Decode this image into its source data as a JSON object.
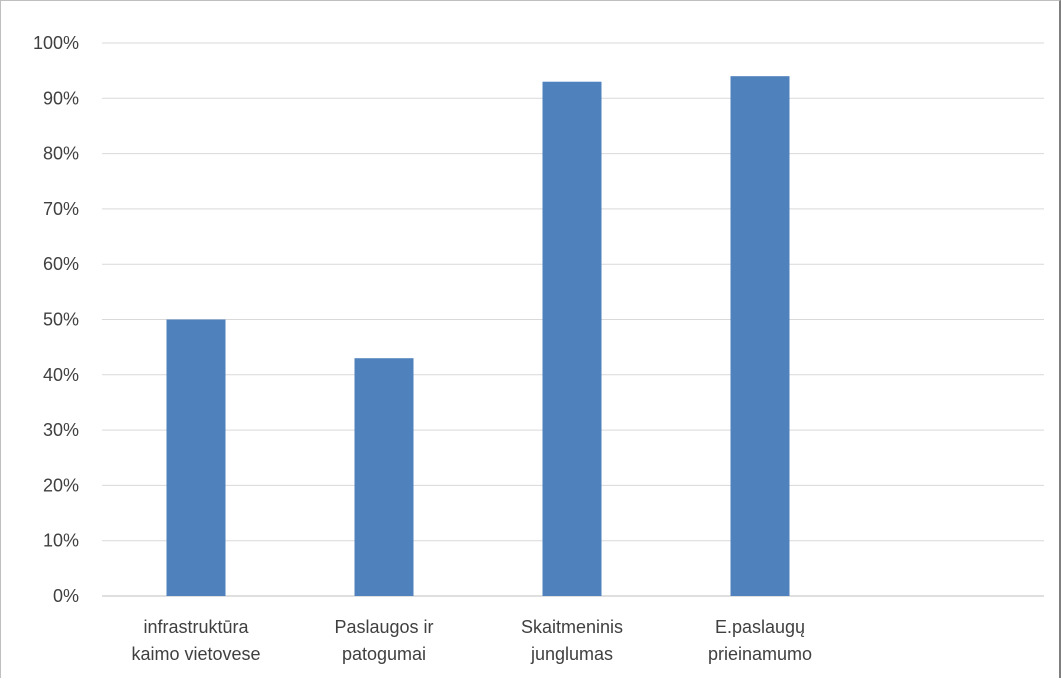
{
  "chart_data": {
    "type": "bar",
    "title": "",
    "xlabel": "",
    "ylabel": "",
    "categories": [
      [
        "infrastruktūra",
        "kaimo vietovese"
      ],
      [
        "Paslaugos ir",
        "patogumai"
      ],
      [
        "Skaitmeninis",
        "junglumas"
      ],
      [
        "E.paslaugų",
        "prieinamumo"
      ]
    ],
    "values": [
      0.5,
      0.43,
      0.93,
      0.94
    ],
    "ylim": [
      0,
      1
    ],
    "yticks": [
      "0%",
      "10%",
      "20%",
      "30%",
      "40%",
      "50%",
      "60%",
      "70%",
      "80%",
      "90%",
      "100%"
    ],
    "grid": true,
    "legend": "none",
    "colors": {
      "bar": "#4f81bd",
      "grid": "#d9d9d9",
      "axis": "#bfbfbf",
      "text": "#404040"
    }
  }
}
